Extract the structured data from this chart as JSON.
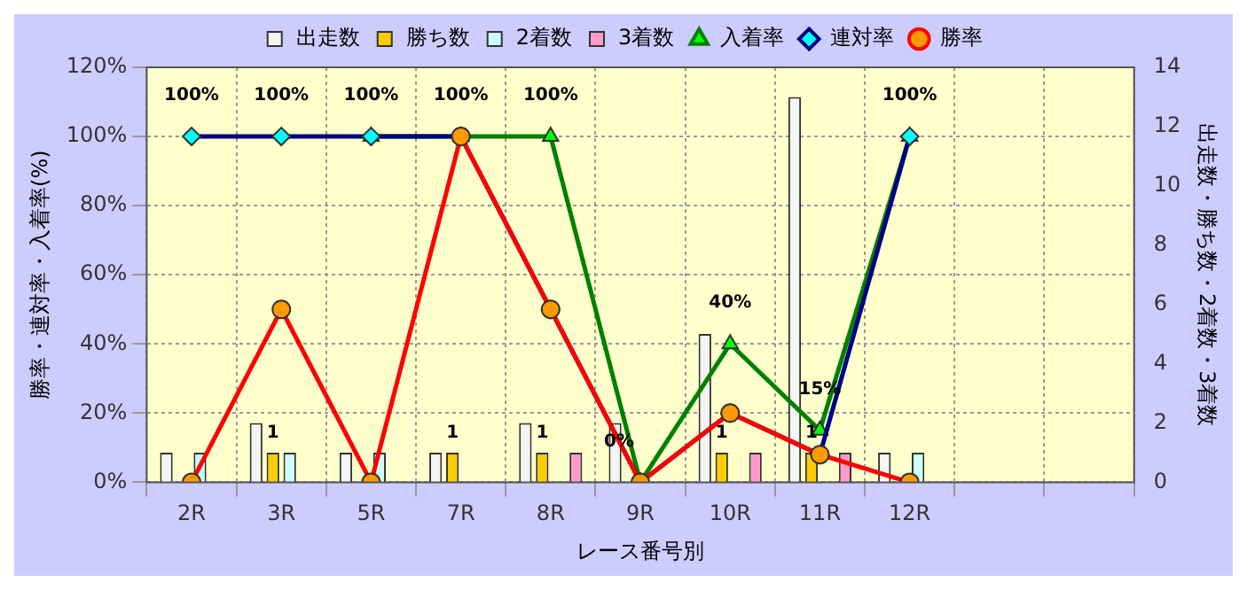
{
  "chart_data": {
    "type": "bar",
    "xlabel": "レース番号別",
    "ylabel": "勝率・連対率・入着率(%)",
    "y2label": "出走数・勝ち数・2着数・3着数",
    "categories": [
      "2R",
      "3R",
      "5R",
      "7R",
      "8R",
      "9R",
      "10R",
      "11R",
      "12R",
      null,
      null
    ],
    "series": [
      {
        "name": "出走数",
        "axis": "y2",
        "color": "#f4f4f4",
        "values": [
          1,
          2,
          1,
          1,
          2,
          2,
          5,
          13,
          1,
          null,
          null
        ]
      },
      {
        "name": "勝ち数",
        "axis": "y2",
        "color": "#ffcc00",
        "values": [
          0,
          1,
          0,
          1,
          1,
          0,
          1,
          1,
          0,
          null,
          null
        ],
        "value_labels": [
          null,
          "1",
          null,
          "1",
          "1",
          null,
          "1",
          "1",
          null,
          null,
          null
        ]
      },
      {
        "name": "2着数",
        "axis": "y2",
        "color": "#ccffff",
        "values": [
          1,
          1,
          1,
          0,
          0,
          0,
          0,
          0,
          1,
          null,
          null
        ]
      },
      {
        "name": "3着数",
        "axis": "y2",
        "color": "#ff99cc",
        "values": [
          0,
          0,
          0,
          0,
          1,
          0,
          1,
          1,
          0,
          null,
          null
        ]
      },
      {
        "name": "入着率",
        "type": "line",
        "color": "#008000",
        "marker": "triangle",
        "values": [
          null,
          null,
          100,
          100,
          100,
          0,
          40,
          15,
          100,
          null,
          null
        ],
        "value_labels": [
          null,
          null,
          "100%",
          "100%",
          "100%",
          "0%",
          "40%",
          "15%",
          "100%",
          null,
          null
        ]
      },
      {
        "name": "連対率",
        "type": "line",
        "color": "#000080",
        "marker": "diamond",
        "values": [
          100,
          100,
          100,
          100,
          50,
          0,
          20,
          8,
          100,
          null,
          null
        ],
        "value_labels": [
          "100%",
          "100%",
          null,
          null,
          null,
          null,
          null,
          null,
          null,
          null,
          null
        ]
      },
      {
        "name": "勝率",
        "type": "line",
        "color": "#ff0000",
        "marker": "circle",
        "values": [
          0,
          50,
          0,
          100,
          50,
          0,
          20,
          8,
          0,
          null,
          null
        ]
      }
    ],
    "ylim": [
      0,
      120
    ],
    "yticks": [
      {
        "value": 0,
        "label": "0%"
      },
      {
        "value": 20,
        "label": "20%"
      },
      {
        "value": 40,
        "label": "40%"
      },
      {
        "value": 60,
        "label": "60%"
      },
      {
        "value": 80,
        "label": "80%"
      },
      {
        "value": 100,
        "label": "100%"
      },
      {
        "value": 120,
        "label": "120%"
      }
    ],
    "y2lim": [
      0,
      14
    ],
    "y2ticks": [
      0,
      2,
      4,
      6,
      8,
      10,
      12,
      14
    ],
    "grid": true,
    "legend": "top"
  }
}
